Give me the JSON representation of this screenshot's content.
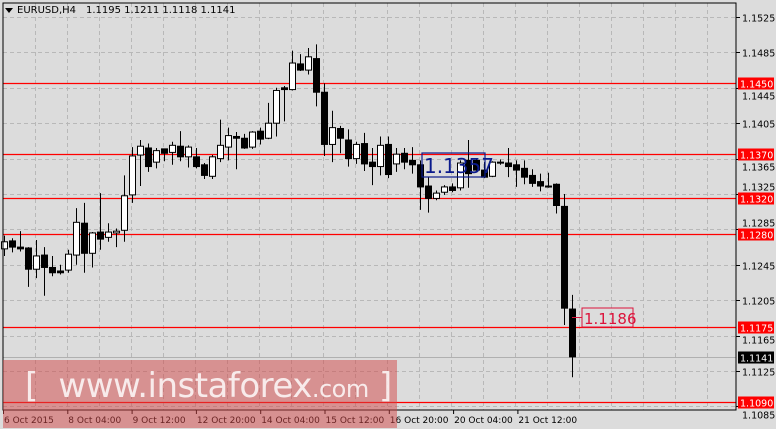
{
  "header": {
    "symbol": "EURUSD,H4",
    "ohlc": "1.1195 1.1211 1.1118 1.1141"
  },
  "watermark": {
    "open": "[",
    "site": "www.instaforex",
    "tld": ".com",
    "close": "]"
  },
  "chart_data": {
    "type": "candlestick",
    "symbol": "EURUSD",
    "timeframe": "H4",
    "ylim": [
      1.1082,
      1.1544
    ],
    "grid": true,
    "y_ticks": [
      "1.1525",
      "1.1485",
      "1.1445",
      "1.1405",
      "1.1365",
      "1.1325",
      "1.1285",
      "1.1245",
      "1.1205",
      "1.1165",
      "1.1125",
      "1.1085"
    ],
    "x_labels": [
      "6 Oct 2015",
      "8 Oct 04:00",
      "9 Oct 12:00",
      "12 Oct 20:00",
      "14 Oct 04:00",
      "15 Oct 12:00",
      "16 Oct 20:00",
      "20 Oct 04:00",
      "21 Oct 12:00"
    ],
    "colors": {
      "background": "#dcdcdc",
      "bull": "#ffffff",
      "bear": "#000000",
      "level": "#ff0000",
      "annotation_blue": "#0a1a8c",
      "annotation_red": "#dc143c"
    },
    "levels": [
      "1.1450",
      "1.1370",
      "1.1320",
      "1.1280",
      "1.1175",
      "1.1090"
    ],
    "current_price": "1.1141",
    "annotations": [
      {
        "text": "1.1357",
        "price": 1.1357,
        "color": "#0a1a8c"
      },
      {
        "text": "1.1186",
        "price": 1.1186,
        "color": "#dc143c"
      }
    ],
    "ohlc": [
      [
        1.1263,
        1.1278,
        1.1255,
        1.1271
      ],
      [
        1.1272,
        1.1275,
        1.1259,
        1.1265
      ],
      [
        1.1265,
        1.1283,
        1.126,
        1.1263
      ],
      [
        1.1264,
        1.1265,
        1.122,
        1.124
      ],
      [
        1.124,
        1.1273,
        1.123,
        1.1255
      ],
      [
        1.1256,
        1.1265,
        1.121,
        1.1242
      ],
      [
        1.1242,
        1.1255,
        1.1232,
        1.1236
      ],
      [
        1.1238,
        1.1245,
        1.1234,
        1.1236
      ],
      [
        1.1239,
        1.1262,
        1.1236,
        1.1257
      ],
      [
        1.1256,
        1.1309,
        1.1245,
        1.1293
      ],
      [
        1.1292,
        1.1315,
        1.1236,
        1.1258
      ],
      [
        1.1258,
        1.1282,
        1.1242,
        1.1281
      ],
      [
        1.1282,
        1.1326,
        1.1262,
        1.1274
      ],
      [
        1.1276,
        1.1292,
        1.1271,
        1.1282
      ],
      [
        1.1281,
        1.1286,
        1.1265,
        1.1283
      ],
      [
        1.1284,
        1.1346,
        1.1271,
        1.1323
      ],
      [
        1.1324,
        1.1378,
        1.1315,
        1.1368
      ],
      [
        1.1369,
        1.1386,
        1.1334,
        1.1379
      ],
      [
        1.1377,
        1.1382,
        1.135,
        1.1356
      ],
      [
        1.1361,
        1.1377,
        1.1354,
        1.1374
      ],
      [
        1.1376,
        1.1376,
        1.1362,
        1.1371
      ],
      [
        1.1372,
        1.1384,
        1.1358,
        1.138
      ],
      [
        1.1379,
        1.1396,
        1.1362,
        1.1367
      ],
      [
        1.1367,
        1.138,
        1.1355,
        1.1378
      ],
      [
        1.1367,
        1.1377,
        1.1354,
        1.1356
      ],
      [
        1.1358,
        1.136,
        1.1342,
        1.1346
      ],
      [
        1.1345,
        1.1369,
        1.1342,
        1.1367
      ],
      [
        1.1365,
        1.1409,
        1.1361,
        1.138
      ],
      [
        1.1378,
        1.14,
        1.1363,
        1.1391
      ],
      [
        1.139,
        1.1395,
        1.1353,
        1.1388
      ],
      [
        1.1388,
        1.1393,
        1.1376,
        1.1377
      ],
      [
        1.1378,
        1.1396,
        1.1376,
        1.1395
      ],
      [
        1.1396,
        1.14,
        1.1381,
        1.1387
      ],
      [
        1.1388,
        1.1428,
        1.1387,
        1.1405
      ],
      [
        1.1405,
        1.1445,
        1.139,
        1.1442
      ],
      [
        1.1445,
        1.1447,
        1.1407,
        1.1443
      ],
      [
        1.1443,
        1.1487,
        1.1442,
        1.1473
      ],
      [
        1.1472,
        1.1483,
        1.1464,
        1.1465
      ],
      [
        1.1465,
        1.149,
        1.146,
        1.148
      ],
      [
        1.1478,
        1.1494,
        1.1424,
        1.144
      ],
      [
        1.144,
        1.145,
        1.1368,
        1.1381
      ],
      [
        1.1381,
        1.1419,
        1.1361,
        1.14
      ],
      [
        1.1399,
        1.1402,
        1.1371,
        1.1388
      ],
      [
        1.1386,
        1.1398,
        1.1356,
        1.1365
      ],
      [
        1.1365,
        1.1384,
        1.1359,
        1.1381
      ],
      [
        1.1382,
        1.1394,
        1.1351,
        1.1359
      ],
      [
        1.1361,
        1.1377,
        1.1335,
        1.1356
      ],
      [
        1.1356,
        1.139,
        1.1346,
        1.138
      ],
      [
        1.1381,
        1.139,
        1.1343,
        1.1347
      ],
      [
        1.1359,
        1.1377,
        1.135,
        1.137
      ],
      [
        1.1371,
        1.1377,
        1.1353,
        1.1361
      ],
      [
        1.1363,
        1.1378,
        1.1348,
        1.1358
      ],
      [
        1.1358,
        1.1363,
        1.1307,
        1.1333
      ],
      [
        1.1334,
        1.1344,
        1.1304,
        1.132
      ],
      [
        1.132,
        1.1329,
        1.1318,
        1.1326
      ],
      [
        1.1327,
        1.1335,
        1.1324,
        1.1333
      ],
      [
        1.1333,
        1.1337,
        1.1327,
        1.1329
      ],
      [
        1.1332,
        1.1363,
        1.1329,
        1.136
      ],
      [
        1.1363,
        1.1386,
        1.1332,
        1.1348
      ],
      [
        1.1363,
        1.1365,
        1.135,
        1.1352
      ],
      [
        1.1352,
        1.1361,
        1.1343,
        1.1344
      ],
      [
        1.1345,
        1.1362,
        1.1344,
        1.1361
      ],
      [
        1.1361,
        1.1364,
        1.1358,
        1.1361
      ],
      [
        1.136,
        1.1377,
        1.1344,
        1.1356
      ],
      [
        1.1358,
        1.1363,
        1.1333,
        1.1352
      ],
      [
        1.1354,
        1.1363,
        1.1336,
        1.1344
      ],
      [
        1.1346,
        1.1353,
        1.1333,
        1.1337
      ],
      [
        1.1339,
        1.1348,
        1.1328,
        1.1334
      ],
      [
        1.1334,
        1.1349,
        1.1332,
        1.1333
      ],
      [
        1.1336,
        1.1337,
        1.1303,
        1.1312
      ],
      [
        1.1311,
        1.1325,
        1.1177,
        1.1196
      ],
      [
        1.1195,
        1.1211,
        1.1118,
        1.1141
      ]
    ]
  }
}
